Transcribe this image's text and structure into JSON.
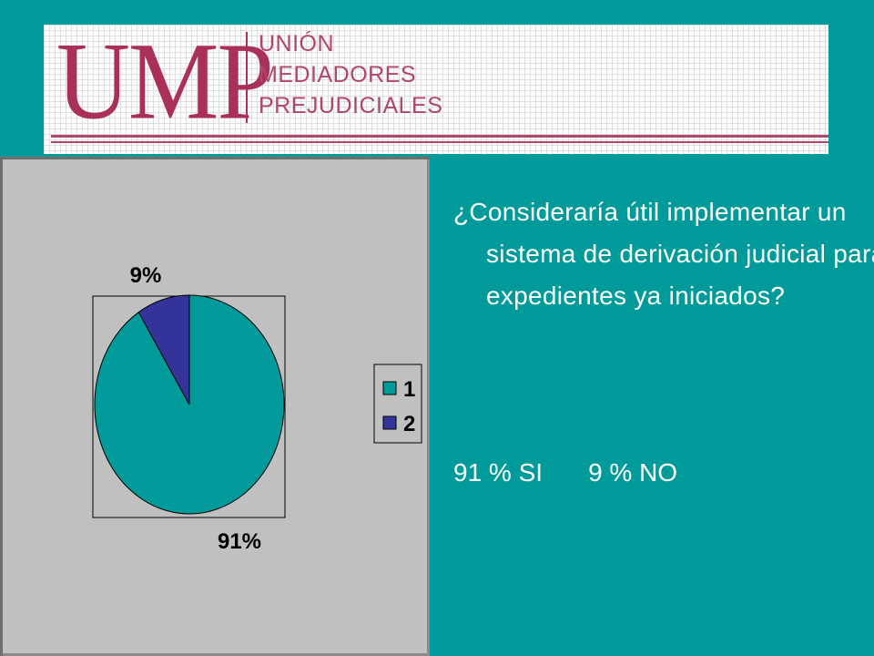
{
  "logo": {
    "mark": "UMP",
    "lines": [
      "UNIÓN",
      "MEDIADORES",
      "PREJUDICIALES"
    ],
    "color": "#a8305a"
  },
  "question": "¿Consideraría útil implementar un sistema de derivación judicial para expedientes ya iniciados?",
  "answers": {
    "si": "91 % SI",
    "no": "9 % NO"
  },
  "colors": {
    "background": "#009A9A",
    "panel": "#c0c0c0",
    "slice1": "#009A9A",
    "slice2": "#333399"
  },
  "chart_data": {
    "type": "pie",
    "categories": [
      "1",
      "2"
    ],
    "values": [
      91,
      9
    ],
    "data_labels": [
      "91%",
      "9%"
    ],
    "legend": {
      "entries": [
        "1",
        "2"
      ],
      "placement": "right"
    }
  }
}
